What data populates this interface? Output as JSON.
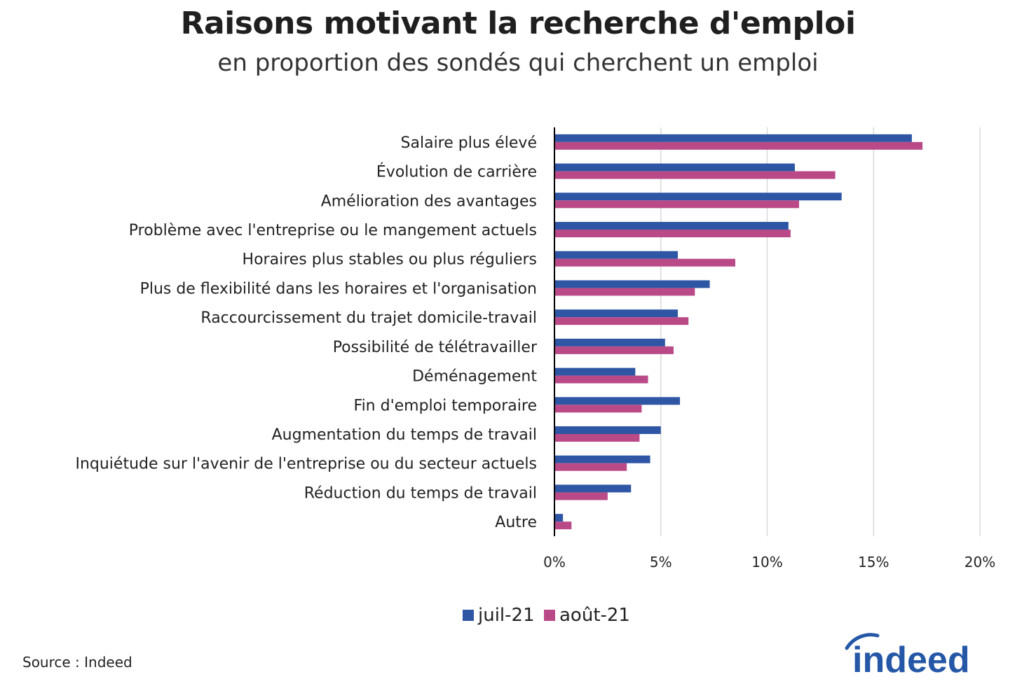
{
  "title": "Raisons motivant la recherche d'emploi",
  "subtitle": "en proportion des sondés qui cherchent un emploi",
  "source": "Source : Indeed",
  "logo_text": "indeed",
  "colors": {
    "series1": "#2E56A4",
    "series2": "#B94A87",
    "grid": "#d9d9d9",
    "axis": "#000000",
    "logo": "#2557A7"
  },
  "chart_data": {
    "type": "bar",
    "orientation": "horizontal",
    "categories": [
      "Salaire plus élevé",
      "Évolution de carrière",
      "Amélioration des avantages",
      "Problème avec l'entreprise ou le mangement actuels",
      "Horaires plus stables ou plus réguliers",
      "Plus de flexibilité dans les horaires et l'organisation",
      "Raccourcissement du trajet domicile-travail",
      "Possibilité de télétravailler",
      "Déménagement",
      "Fin d'emploi temporaire",
      "Augmentation du temps de travail",
      "Inquiétude sur l'avenir de l'entreprise ou du secteur actuels",
      "Réduction du temps de travail",
      "Autre"
    ],
    "series": [
      {
        "name": "juil-21",
        "values": [
          16.8,
          11.3,
          13.5,
          11.0,
          5.8,
          7.3,
          5.8,
          5.2,
          3.8,
          5.9,
          5.0,
          4.5,
          3.6,
          0.4
        ]
      },
      {
        "name": "août-21",
        "values": [
          17.3,
          13.2,
          11.5,
          11.1,
          8.5,
          6.6,
          6.3,
          5.6,
          4.4,
          4.1,
          4.0,
          3.4,
          2.5,
          0.8
        ]
      }
    ],
    "xlim": [
      0,
      20
    ],
    "xticks": [
      0,
      5,
      10,
      15,
      20
    ],
    "xtick_labels": [
      "0%",
      "5%",
      "10%",
      "15%",
      "20%"
    ],
    "grid": true,
    "legend_position": "bottom"
  }
}
